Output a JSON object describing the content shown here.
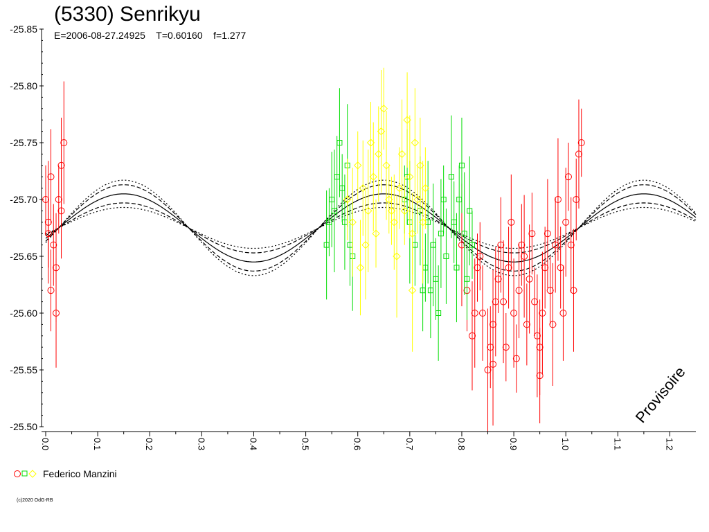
{
  "header": {
    "title": "(5330) Senrikyu",
    "epoch": "E=2006-08-27.24925",
    "period": "T=0.60160",
    "factor": "f=1.277"
  },
  "watermark": "Provisoire",
  "legend": {
    "observer": "Federico Manzini",
    "symbols": [
      "circle",
      "square",
      "diamond"
    ],
    "colors": [
      "#ff0000",
      "#00dd00",
      "#ffff00"
    ]
  },
  "copyright": "(c)2020 OdG-RB",
  "chart_data": {
    "type": "scatter",
    "title": "(5330) Senrikyu",
    "xlabel": "",
    "ylabel": "",
    "xlim": [
      0,
      1.25
    ],
    "ylim": [
      -25.85,
      -25.5
    ],
    "y_inverted": true,
    "x_ticks": [
      "0.0",
      "0.1",
      "0.2",
      "0.3",
      "0.4",
      "0.5",
      "0.6",
      "0.7",
      "0.8",
      "0.9",
      "1.0",
      "1.1",
      "1.2"
    ],
    "y_ticks": [
      "-25.85",
      "-25.80",
      "-25.75",
      "-25.70",
      "-25.65",
      "-25.60",
      "-25.55",
      "-25.50"
    ],
    "grid": false,
    "fit_curve": {
      "mean": -25.675,
      "amplitude": 0.03,
      "peak_phase": 0.15,
      "period_in_phase": 0.5,
      "envelope": 0.008
    },
    "series": [
      {
        "name": "Federico Manzini",
        "marker": "circle",
        "color": "#ff0000",
        "points": [
          [
            0.0,
            -25.7
          ],
          [
            0.01,
            -25.72
          ],
          [
            0.005,
            -25.68
          ],
          [
            0.015,
            -25.66
          ],
          [
            0.02,
            -25.64
          ],
          [
            0.025,
            -25.7
          ],
          [
            0.03,
            -25.73
          ],
          [
            0.035,
            -25.75
          ],
          [
            0.01,
            -25.62
          ],
          [
            0.02,
            -25.6
          ],
          [
            0.005,
            -25.67
          ],
          [
            0.03,
            -25.69
          ],
          [
            0.8,
            -25.66
          ],
          [
            0.81,
            -25.62
          ],
          [
            0.82,
            -25.58
          ],
          [
            0.83,
            -25.64
          ],
          [
            0.84,
            -25.6
          ],
          [
            0.85,
            -25.55
          ],
          [
            0.855,
            -25.57
          ],
          [
            0.86,
            -25.59
          ],
          [
            0.87,
            -25.63
          ],
          [
            0.875,
            -25.66
          ],
          [
            0.88,
            -25.61
          ],
          [
            0.89,
            -25.64
          ],
          [
            0.9,
            -25.6
          ],
          [
            0.905,
            -25.56
          ],
          [
            0.91,
            -25.62
          ],
          [
            0.92,
            -25.65
          ],
          [
            0.925,
            -25.59
          ],
          [
            0.93,
            -25.63
          ],
          [
            0.94,
            -25.61
          ],
          [
            0.95,
            -25.57
          ],
          [
            0.955,
            -25.6
          ],
          [
            0.96,
            -25.64
          ],
          [
            0.965,
            -25.67
          ],
          [
            0.97,
            -25.62
          ],
          [
            0.98,
            -25.66
          ],
          [
            0.985,
            -25.7
          ],
          [
            0.99,
            -25.64
          ],
          [
            1.0,
            -25.68
          ],
          [
            1.005,
            -25.72
          ],
          [
            1.01,
            -25.66
          ],
          [
            1.015,
            -25.62
          ],
          [
            1.02,
            -25.7
          ],
          [
            1.025,
            -25.74
          ],
          [
            1.03,
            -25.75
          ],
          [
            0.995,
            -25.6
          ],
          [
            0.945,
            -25.58
          ],
          [
            0.915,
            -25.66
          ],
          [
            0.865,
            -25.61
          ],
          [
            0.835,
            -25.65
          ],
          [
            0.895,
            -25.68
          ],
          [
            0.975,
            -25.59
          ],
          [
            0.935,
            -25.67
          ],
          [
            0.825,
            -25.6
          ],
          [
            0.885,
            -25.57
          ],
          [
            0.95,
            -25.545
          ],
          [
            0.86,
            -25.555
          ]
        ]
      },
      {
        "name": "",
        "marker": "square",
        "color": "#00dd00",
        "points": [
          [
            0.54,
            -25.66
          ],
          [
            0.545,
            -25.68
          ],
          [
            0.55,
            -25.7
          ],
          [
            0.555,
            -25.69
          ],
          [
            0.56,
            -25.72
          ],
          [
            0.565,
            -25.75
          ],
          [
            0.57,
            -25.71
          ],
          [
            0.575,
            -25.68
          ],
          [
            0.58,
            -25.73
          ],
          [
            0.585,
            -25.66
          ],
          [
            0.59,
            -25.65
          ],
          [
            0.69,
            -25.7
          ],
          [
            0.695,
            -25.72
          ],
          [
            0.7,
            -25.68
          ],
          [
            0.71,
            -25.66
          ],
          [
            0.72,
            -25.69
          ],
          [
            0.73,
            -25.64
          ],
          [
            0.74,
            -25.62
          ],
          [
            0.745,
            -25.66
          ],
          [
            0.75,
            -25.63
          ],
          [
            0.76,
            -25.67
          ],
          [
            0.765,
            -25.7
          ],
          [
            0.77,
            -25.65
          ],
          [
            0.78,
            -25.72
          ],
          [
            0.785,
            -25.68
          ],
          [
            0.79,
            -25.64
          ],
          [
            0.795,
            -25.7
          ],
          [
            0.8,
            -25.73
          ],
          [
            0.805,
            -25.67
          ],
          [
            0.81,
            -25.63
          ],
          [
            0.815,
            -25.69
          ],
          [
            0.82,
            -25.66
          ],
          [
            0.755,
            -25.6
          ],
          [
            0.735,
            -25.68
          ],
          [
            0.725,
            -25.62
          ]
        ]
      },
      {
        "name": "",
        "marker": "diamond",
        "color": "#ffff00",
        "points": [
          [
            0.58,
            -25.7
          ],
          [
            0.59,
            -25.68
          ],
          [
            0.6,
            -25.73
          ],
          [
            0.61,
            -25.71
          ],
          [
            0.62,
            -25.69
          ],
          [
            0.625,
            -25.75
          ],
          [
            0.63,
            -25.72
          ],
          [
            0.635,
            -25.67
          ],
          [
            0.64,
            -25.74
          ],
          [
            0.645,
            -25.76
          ],
          [
            0.65,
            -25.78
          ],
          [
            0.655,
            -25.73
          ],
          [
            0.66,
            -25.7
          ],
          [
            0.67,
            -25.68
          ],
          [
            0.675,
            -25.65
          ],
          [
            0.68,
            -25.71
          ],
          [
            0.685,
            -25.74
          ],
          [
            0.69,
            -25.69
          ],
          [
            0.695,
            -25.77
          ],
          [
            0.7,
            -25.72
          ],
          [
            0.705,
            -25.67
          ],
          [
            0.71,
            -25.75
          ],
          [
            0.715,
            -25.7
          ],
          [
            0.72,
            -25.73
          ],
          [
            0.725,
            -25.68
          ],
          [
            0.73,
            -25.71
          ],
          [
            0.615,
            -25.66
          ],
          [
            0.665,
            -25.69
          ],
          [
            0.605,
            -25.64
          ],
          [
            0.705,
            -25.62
          ]
        ]
      }
    ]
  }
}
